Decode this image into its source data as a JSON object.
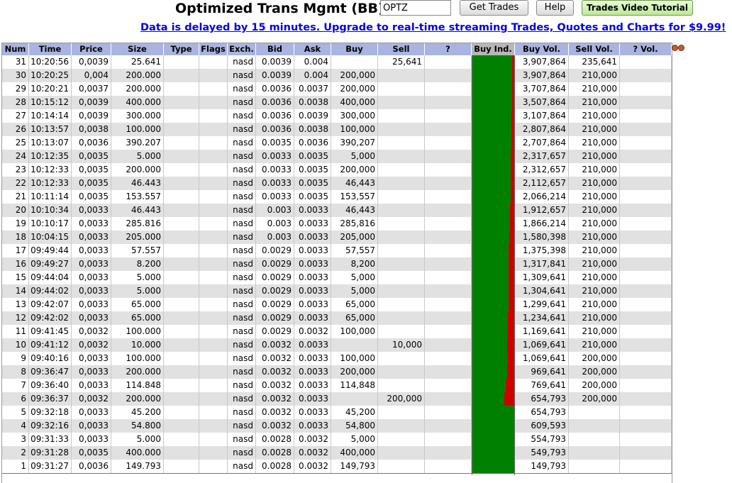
{
  "header": {
    "title": "Optimized Trans Mgmt (BB)",
    "symbol_value": "OPTZ",
    "get_trades_label": "Get Trades",
    "help_label": "Help",
    "video_label": "Trades Video Tutorial",
    "delay_text": "Data is delayed by 15 minutes. Upgrade to real-time streaming Trades, Quotes and Charts for $9.99!"
  },
  "colors": {
    "header_bg": "#a9b4e0",
    "buy": "#008000",
    "sell": "#cc0000",
    "alt_row": "#e1e1e1",
    "link": "#0000ee"
  },
  "columns": [
    "Num",
    "Time",
    "Price",
    "Size",
    "Type",
    "Flags",
    "Exch.",
    "Bid",
    "Ask",
    "Buy",
    "Sell",
    "?",
    "Buy Ind.",
    "Buy Vol.",
    "Sell Vol.",
    "? Vol."
  ],
  "rows": [
    {
      "num": "31",
      "time": "10:20:56",
      "price": "0,0039",
      "size": "25.641",
      "type": "",
      "flags": "",
      "exch": "nasd",
      "bid": "0.0039",
      "ask": "0.004",
      "buy": "",
      "sell": "25,641",
      "q": "",
      "buy_vol": "3,907,864",
      "sell_vol": "235,641",
      "q_vol": "",
      "buy_ratio": 0.943
    },
    {
      "num": "30",
      "time": "10:20:25",
      "price": "0,004",
      "size": "200.000",
      "type": "",
      "flags": "",
      "exch": "nasd",
      "bid": "0.0039",
      "ask": "0.004",
      "buy": "200,000",
      "sell": "",
      "q": "",
      "buy_vol": "3,907,864",
      "sell_vol": "210,000",
      "q_vol": "",
      "buy_ratio": 0.949
    },
    {
      "num": "29",
      "time": "10:20:21",
      "price": "0,0037",
      "size": "200.000",
      "type": "",
      "flags": "",
      "exch": "nasd",
      "bid": "0.0036",
      "ask": "0.0037",
      "buy": "200,000",
      "sell": "",
      "q": "",
      "buy_vol": "3,707,864",
      "sell_vol": "210,000",
      "q_vol": "",
      "buy_ratio": 0.946
    },
    {
      "num": "28",
      "time": "10:15:12",
      "price": "0,0039",
      "size": "400.000",
      "type": "",
      "flags": "",
      "exch": "nasd",
      "bid": "0.0036",
      "ask": "0.0038",
      "buy": "400,000",
      "sell": "",
      "q": "",
      "buy_vol": "3,507,864",
      "sell_vol": "210,000",
      "q_vol": "",
      "buy_ratio": 0.943
    },
    {
      "num": "27",
      "time": "10:14:14",
      "price": "0,0039",
      "size": "300.000",
      "type": "",
      "flags": "",
      "exch": "nasd",
      "bid": "0.0036",
      "ask": "0.0039",
      "buy": "300,000",
      "sell": "",
      "q": "",
      "buy_vol": "3,107,864",
      "sell_vol": "210,000",
      "q_vol": "",
      "buy_ratio": 0.937
    },
    {
      "num": "26",
      "time": "10:13:57",
      "price": "0,0038",
      "size": "100.000",
      "type": "",
      "flags": "",
      "exch": "nasd",
      "bid": "0.0036",
      "ask": "0.0038",
      "buy": "100,000",
      "sell": "",
      "q": "",
      "buy_vol": "2,807,864",
      "sell_vol": "210,000",
      "q_vol": "",
      "buy_ratio": 0.93
    },
    {
      "num": "25",
      "time": "10:13:07",
      "price": "0,0036",
      "size": "390.207",
      "type": "",
      "flags": "",
      "exch": "nasd",
      "bid": "0.0035",
      "ask": "0.0036",
      "buy": "390,207",
      "sell": "",
      "q": "",
      "buy_vol": "2,707,864",
      "sell_vol": "210,000",
      "q_vol": "",
      "buy_ratio": 0.928
    },
    {
      "num": "24",
      "time": "10:12:35",
      "price": "0,0035",
      "size": "5.000",
      "type": "",
      "flags": "",
      "exch": "nasd",
      "bid": "0.0033",
      "ask": "0.0035",
      "buy": "5,000",
      "sell": "",
      "q": "",
      "buy_vol": "2,317,657",
      "sell_vol": "210,000",
      "q_vol": "",
      "buy_ratio": 0.917
    },
    {
      "num": "23",
      "time": "10:12:33",
      "price": "0,0035",
      "size": "200.000",
      "type": "",
      "flags": "",
      "exch": "nasd",
      "bid": "0.0033",
      "ask": "0.0035",
      "buy": "200,000",
      "sell": "",
      "q": "",
      "buy_vol": "2,312,657",
      "sell_vol": "210,000",
      "q_vol": "",
      "buy_ratio": 0.917
    },
    {
      "num": "22",
      "time": "10:12:33",
      "price": "0,0035",
      "size": "46.443",
      "type": "",
      "flags": "",
      "exch": "nasd",
      "bid": "0.0033",
      "ask": "0.0035",
      "buy": "46,443",
      "sell": "",
      "q": "",
      "buy_vol": "2,112,657",
      "sell_vol": "210,000",
      "q_vol": "",
      "buy_ratio": 0.91
    },
    {
      "num": "21",
      "time": "10:11:14",
      "price": "0,0035",
      "size": "153.557",
      "type": "",
      "flags": "",
      "exch": "nasd",
      "bid": "0.0033",
      "ask": "0.0035",
      "buy": "153,557",
      "sell": "",
      "q": "",
      "buy_vol": "2,066,214",
      "sell_vol": "210,000",
      "q_vol": "",
      "buy_ratio": 0.908
    },
    {
      "num": "20",
      "time": "10:10:34",
      "price": "0,0033",
      "size": "46.443",
      "type": "",
      "flags": "",
      "exch": "nasd",
      "bid": "0.003",
      "ask": "0.0033",
      "buy": "46,443",
      "sell": "",
      "q": "",
      "buy_vol": "1,912,657",
      "sell_vol": "210,000",
      "q_vol": "",
      "buy_ratio": 0.901
    },
    {
      "num": "19",
      "time": "10:10:17",
      "price": "0,0033",
      "size": "285.816",
      "type": "",
      "flags": "",
      "exch": "nasd",
      "bid": "0.003",
      "ask": "0.0033",
      "buy": "285,816",
      "sell": "",
      "q": "",
      "buy_vol": "1,866,214",
      "sell_vol": "210,000",
      "q_vol": "",
      "buy_ratio": 0.899
    },
    {
      "num": "18",
      "time": "10:04:15",
      "price": "0,0033",
      "size": "205.000",
      "type": "",
      "flags": "",
      "exch": "nasd",
      "bid": "0.003",
      "ask": "0.0033",
      "buy": "205,000",
      "sell": "",
      "q": "",
      "buy_vol": "1,580,398",
      "sell_vol": "210,000",
      "q_vol": "",
      "buy_ratio": 0.883
    },
    {
      "num": "17",
      "time": "09:49:44",
      "price": "0,0033",
      "size": "57.557",
      "type": "",
      "flags": "",
      "exch": "nasd",
      "bid": "0.0029",
      "ask": "0.0033",
      "buy": "57,557",
      "sell": "",
      "q": "",
      "buy_vol": "1,375,398",
      "sell_vol": "210,000",
      "q_vol": "",
      "buy_ratio": 0.868
    },
    {
      "num": "16",
      "time": "09:49:27",
      "price": "0,0033",
      "size": "8.200",
      "type": "",
      "flags": "",
      "exch": "nasd",
      "bid": "0.0029",
      "ask": "0.0033",
      "buy": "8,200",
      "sell": "",
      "q": "",
      "buy_vol": "1,317,841",
      "sell_vol": "210,000",
      "q_vol": "",
      "buy_ratio": 0.863
    },
    {
      "num": "15",
      "time": "09:44:04",
      "price": "0,0033",
      "size": "5.000",
      "type": "",
      "flags": "",
      "exch": "nasd",
      "bid": "0.0029",
      "ask": "0.0033",
      "buy": "5,000",
      "sell": "",
      "q": "",
      "buy_vol": "1,309,641",
      "sell_vol": "210,000",
      "q_vol": "",
      "buy_ratio": 0.862
    },
    {
      "num": "14",
      "time": "09:44:02",
      "price": "0,0033",
      "size": "5.000",
      "type": "",
      "flags": "",
      "exch": "nasd",
      "bid": "0.0029",
      "ask": "0.0033",
      "buy": "5,000",
      "sell": "",
      "q": "",
      "buy_vol": "1,304,641",
      "sell_vol": "210,000",
      "q_vol": "",
      "buy_ratio": 0.861
    },
    {
      "num": "13",
      "time": "09:42:07",
      "price": "0,0033",
      "size": "65.000",
      "type": "",
      "flags": "",
      "exch": "nasd",
      "bid": "0.0029",
      "ask": "0.0033",
      "buy": "65,000",
      "sell": "",
      "q": "",
      "buy_vol": "1,299,641",
      "sell_vol": "210,000",
      "q_vol": "",
      "buy_ratio": 0.861
    },
    {
      "num": "12",
      "time": "09:42:02",
      "price": "0,0033",
      "size": "65.000",
      "type": "",
      "flags": "",
      "exch": "nasd",
      "bid": "0.0029",
      "ask": "0.0033",
      "buy": "65,000",
      "sell": "",
      "q": "",
      "buy_vol": "1,234,641",
      "sell_vol": "210,000",
      "q_vol": "",
      "buy_ratio": 0.855
    },
    {
      "num": "11",
      "time": "09:41:45",
      "price": "0,0032",
      "size": "100.000",
      "type": "",
      "flags": "",
      "exch": "nasd",
      "bid": "0.0029",
      "ask": "0.0032",
      "buy": "100,000",
      "sell": "",
      "q": "",
      "buy_vol": "1,169,641",
      "sell_vol": "210,000",
      "q_vol": "",
      "buy_ratio": 0.848
    },
    {
      "num": "10",
      "time": "09:41:12",
      "price": "0,0032",
      "size": "10.000",
      "type": "",
      "flags": "",
      "exch": "nasd",
      "bid": "0.0032",
      "ask": "0.0033",
      "buy": "",
      "sell": "10,000",
      "q": "",
      "buy_vol": "1,069,641",
      "sell_vol": "210,000",
      "q_vol": "",
      "buy_ratio": 0.836
    },
    {
      "num": "9",
      "time": "09:40:16",
      "price": "0,0033",
      "size": "100.000",
      "type": "",
      "flags": "",
      "exch": "nasd",
      "bid": "0.0032",
      "ask": "0.0033",
      "buy": "100,000",
      "sell": "",
      "q": "",
      "buy_vol": "1,069,641",
      "sell_vol": "200,000",
      "q_vol": "",
      "buy_ratio": 0.842
    },
    {
      "num": "8",
      "time": "09:36:47",
      "price": "0,0033",
      "size": "200.000",
      "type": "",
      "flags": "",
      "exch": "nasd",
      "bid": "0.0032",
      "ask": "0.0033",
      "buy": "200,000",
      "sell": "",
      "q": "",
      "buy_vol": "969,641",
      "sell_vol": "200,000",
      "q_vol": "",
      "buy_ratio": 0.829
    },
    {
      "num": "7",
      "time": "09:36:40",
      "price": "0,0033",
      "size": "114.848",
      "type": "",
      "flags": "",
      "exch": "nasd",
      "bid": "0.0032",
      "ask": "0.0033",
      "buy": "114,848",
      "sell": "",
      "q": "",
      "buy_vol": "769,641",
      "sell_vol": "200,000",
      "q_vol": "",
      "buy_ratio": 0.794
    },
    {
      "num": "6",
      "time": "09:36:37",
      "price": "0,0032",
      "size": "200.000",
      "type": "",
      "flags": "",
      "exch": "nasd",
      "bid": "0.0032",
      "ask": "0.0033",
      "buy": "",
      "sell": "200,000",
      "q": "",
      "buy_vol": "654,793",
      "sell_vol": "200,000",
      "q_vol": "",
      "buy_ratio": 0.766
    },
    {
      "num": "5",
      "time": "09:32:18",
      "price": "0,0033",
      "size": "45.200",
      "type": "",
      "flags": "",
      "exch": "nasd",
      "bid": "0.0032",
      "ask": "0.0033",
      "buy": "45,200",
      "sell": "",
      "q": "",
      "buy_vol": "654,793",
      "sell_vol": "",
      "q_vol": "",
      "buy_ratio": 1.0
    },
    {
      "num": "4",
      "time": "09:32:16",
      "price": "0,0033",
      "size": "54.800",
      "type": "",
      "flags": "",
      "exch": "nasd",
      "bid": "0.0032",
      "ask": "0.0033",
      "buy": "54,800",
      "sell": "",
      "q": "",
      "buy_vol": "609,593",
      "sell_vol": "",
      "q_vol": "",
      "buy_ratio": 1.0
    },
    {
      "num": "3",
      "time": "09:31:33",
      "price": "0,0033",
      "size": "5.000",
      "type": "",
      "flags": "",
      "exch": "nasd",
      "bid": "0.0028",
      "ask": "0.0032",
      "buy": "5,000",
      "sell": "",
      "q": "",
      "buy_vol": "554,793",
      "sell_vol": "",
      "q_vol": "",
      "buy_ratio": 1.0
    },
    {
      "num": "2",
      "time": "09:31:28",
      "price": "0,0035",
      "size": "400.000",
      "type": "",
      "flags": "",
      "exch": "nasd",
      "bid": "0.0028",
      "ask": "0.0032",
      "buy": "400,000",
      "sell": "",
      "q": "",
      "buy_vol": "549,793",
      "sell_vol": "",
      "q_vol": "",
      "buy_ratio": 1.0
    },
    {
      "num": "1",
      "time": "09:31:27",
      "price": "0,0036",
      "size": "149.793",
      "type": "",
      "flags": "",
      "exch": "nasd",
      "bid": "0.0028",
      "ask": "0.0032",
      "buy": "149,793",
      "sell": "",
      "q": "",
      "buy_vol": "149,793",
      "sell_vol": "",
      "q_vol": "",
      "buy_ratio": 1.0
    }
  ]
}
